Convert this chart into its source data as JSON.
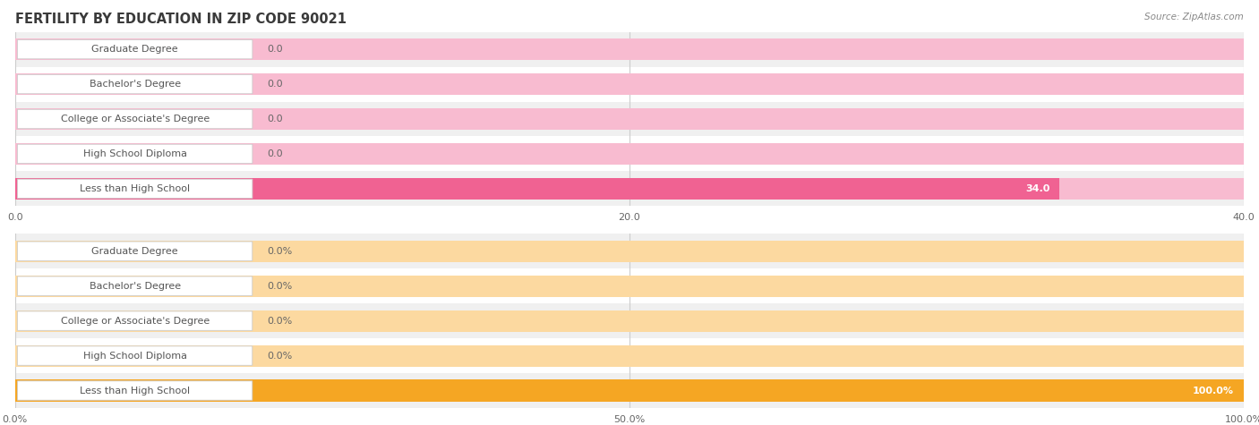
{
  "title": "FERTILITY BY EDUCATION IN ZIP CODE 90021",
  "source_text": "Source: ZipAtlas.com",
  "top_chart": {
    "categories": [
      "Less than High School",
      "High School Diploma",
      "College or Associate's Degree",
      "Bachelor's Degree",
      "Graduate Degree"
    ],
    "values": [
      34.0,
      0.0,
      0.0,
      0.0,
      0.0
    ],
    "bar_color_main": "#f06292",
    "bar_color_light": "#f8bbd0",
    "xlim": [
      0,
      40
    ],
    "xticks": [
      0.0,
      20.0,
      40.0
    ],
    "xtick_labels": [
      "0.0",
      "20.0",
      "40.0"
    ],
    "value_labels": [
      "34.0",
      "0.0",
      "0.0",
      "0.0",
      "0.0"
    ],
    "val_inside": [
      true,
      false,
      false,
      false,
      false
    ]
  },
  "bottom_chart": {
    "categories": [
      "Less than High School",
      "High School Diploma",
      "College or Associate's Degree",
      "Bachelor's Degree",
      "Graduate Degree"
    ],
    "values": [
      100.0,
      0.0,
      0.0,
      0.0,
      0.0
    ],
    "bar_color_main": "#f5a623",
    "bar_color_light": "#fcd9a0",
    "xlim": [
      0,
      100
    ],
    "xticks": [
      0.0,
      50.0,
      100.0
    ],
    "xtick_labels": [
      "0.0%",
      "50.0%",
      "100.0%"
    ],
    "value_labels": [
      "100.0%",
      "0.0%",
      "0.0%",
      "0.0%",
      "0.0%"
    ],
    "val_inside": [
      true,
      false,
      false,
      false,
      false
    ]
  },
  "background_color": "#ffffff",
  "row_bg_colors": [
    "#f0f0f0",
    "#ffffff",
    "#f0f0f0",
    "#ffffff",
    "#f0f0f0"
  ],
  "label_text_color": "#555555",
  "title_color": "#3a3a3a",
  "source_color": "#888888",
  "bar_height": 0.62,
  "label_fontsize": 8.0,
  "title_fontsize": 10.5,
  "value_fontsize": 8.0,
  "tick_fontsize": 8.0
}
